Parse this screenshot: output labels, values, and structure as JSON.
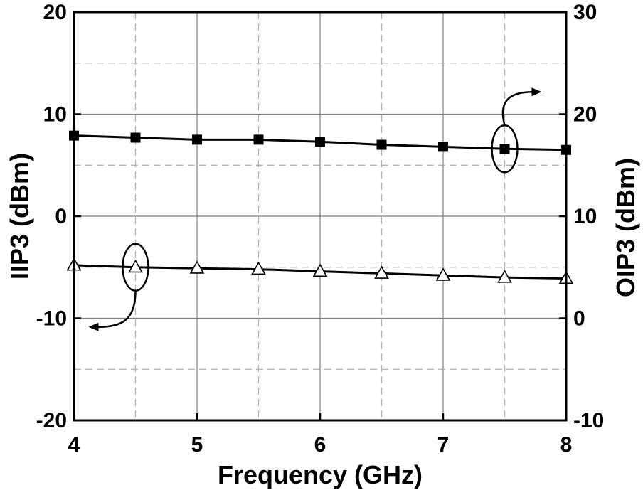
{
  "chart_data": {
    "type": "line",
    "title": "",
    "xlabel": "Frequency (GHz)",
    "ylabel_left": "IIP3 (dBm)",
    "ylabel_right": "OIP3 (dBm)",
    "x_ticks": [
      "4",
      "5",
      "6",
      "7",
      "8"
    ],
    "y_left_ticks": [
      "-20",
      "-10",
      "0",
      "10",
      "20"
    ],
    "y_right_ticks": [
      "-10",
      "0",
      "10",
      "20",
      "30"
    ],
    "xlim": [
      4,
      8
    ],
    "ylim_left": [
      -20,
      20
    ],
    "ylim_right": [
      -10,
      30
    ],
    "grid": true,
    "grid_minor_dashed": true,
    "series": [
      {
        "axis": "right",
        "marker": "filled-square",
        "x": [
          4,
          4.5,
          5,
          5.5,
          6,
          6.5,
          7,
          7.5,
          8
        ],
        "y": [
          17.9,
          17.7,
          17.5,
          17.5,
          17.3,
          17.0,
          16.8,
          16.6,
          16.5
        ]
      },
      {
        "axis": "left",
        "marker": "open-triangle",
        "x": [
          4,
          4.5,
          5,
          5.5,
          6,
          6.5,
          7,
          7.5,
          8
        ],
        "y": [
          -4.8,
          -5.0,
          -5.1,
          -5.2,
          -5.4,
          -5.6,
          -5.8,
          -6.0,
          -6.1
        ]
      }
    ],
    "annotations": [
      {
        "type": "ellipse-arrow",
        "target_series": 0,
        "at_x": 7.5,
        "arrow_direction": "right"
      },
      {
        "type": "ellipse-arrow",
        "target_series": 1,
        "at_x": 4.5,
        "arrow_direction": "left"
      }
    ],
    "colors": {
      "background": "#ffffff",
      "frame": "#000000",
      "grid_major": "#808080",
      "grid_minor": "#b0b0b0",
      "line": "#000000",
      "marker_open_fill": "#ffffff"
    }
  }
}
